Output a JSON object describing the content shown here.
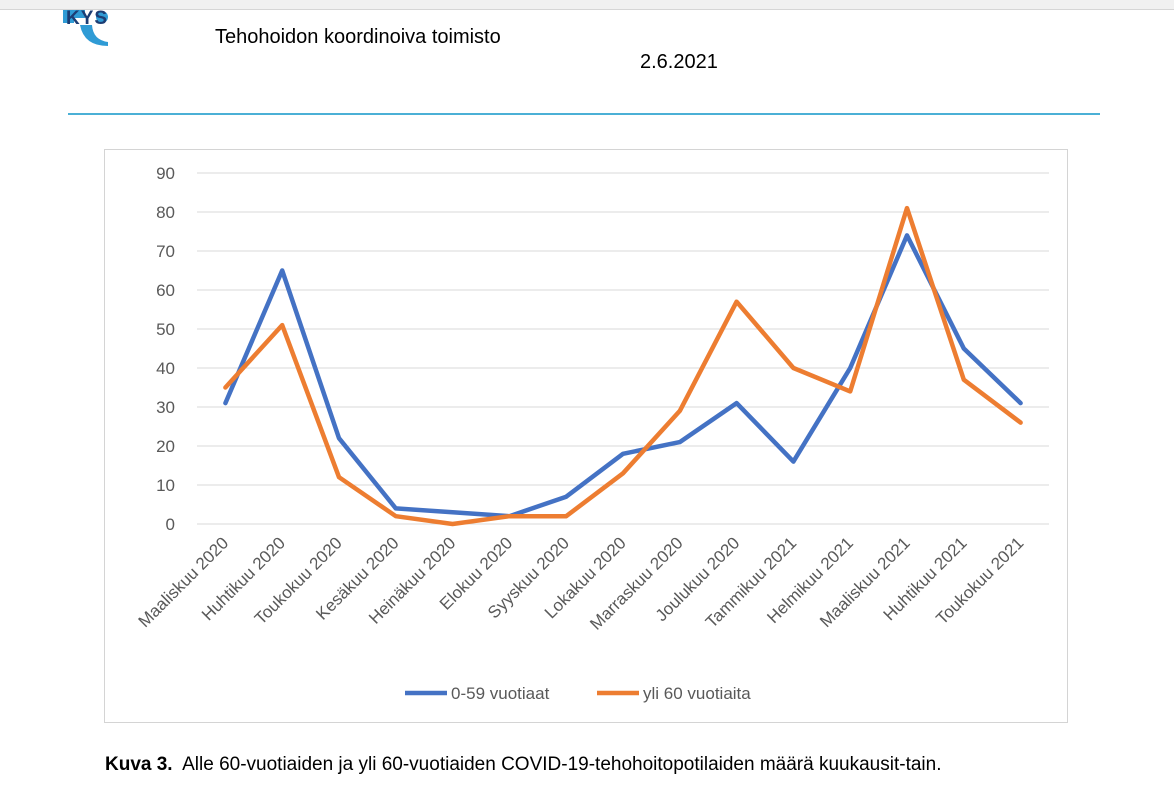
{
  "header": {
    "logo_text": "KYS",
    "organization": "Tehohoidon koordinoiva toimisto",
    "date": "2.6.2021"
  },
  "colors": {
    "series_blue": "#4472c4",
    "series_orange": "#ed7d31",
    "grid": "#d9d9d9",
    "rule": "#4bb0d6"
  },
  "chart_data": {
    "type": "line",
    "title": "",
    "xlabel": "",
    "ylabel": "",
    "ylim": [
      0,
      90
    ],
    "yticks": [
      0,
      10,
      20,
      30,
      40,
      50,
      60,
      70,
      80,
      90
    ],
    "grid": true,
    "legend": "bottom",
    "categories": [
      "Maaliskuu 2020",
      "Huhtikuu 2020",
      "Toukokuu 2020",
      "Kesäkuu 2020",
      "Heinäkuu 2020",
      "Elokuu 2020",
      "Syyskuu 2020",
      "Lokakuu 2020",
      "Marraskuu 2020",
      "Joulukuu 2020",
      "Tammikuu 2021",
      "Helmikuu 2021",
      "Maaliskuu 2021",
      "Huhtikuu 2021",
      "Toukokuu 2021"
    ],
    "series": [
      {
        "name": "0-59 vuotiaat",
        "color": "#4472c4",
        "values": [
          31,
          65,
          22,
          4,
          3,
          2,
          7,
          18,
          21,
          31,
          16,
          40,
          74,
          45,
          31
        ]
      },
      {
        "name": "yli 60 vuotiaita",
        "color": "#ed7d31",
        "values": [
          35,
          51,
          12,
          2,
          0,
          2,
          2,
          13,
          29,
          57,
          40,
          34,
          81,
          37,
          26
        ]
      }
    ]
  },
  "caption": {
    "label": "Kuva 3.",
    "text": "Alle 60-vuotiaiden ja yli 60-vuotiaiden COVID-19-tehohoitopotilaiden määrä kuukausit-tain."
  }
}
